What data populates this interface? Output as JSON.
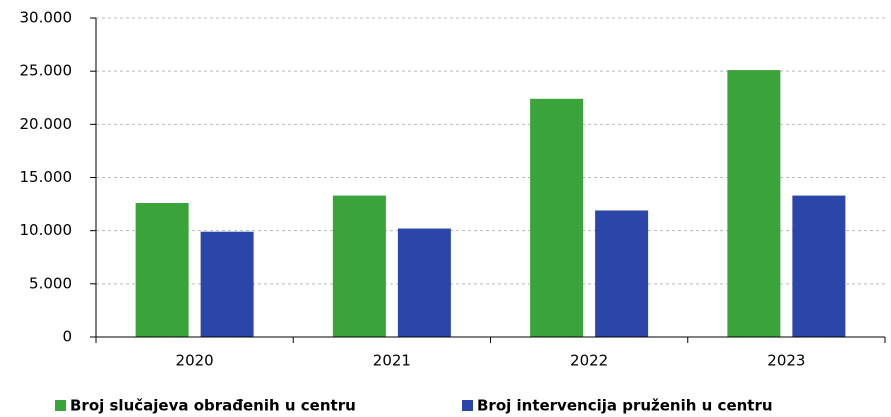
{
  "chart_data": {
    "type": "bar",
    "categories": [
      "2020",
      "2021",
      "2022",
      "2023"
    ],
    "series": [
      {
        "name": "Broj slučajeva obrađenih u centru",
        "color": "#3aa33a",
        "values": [
          12600,
          13300,
          22400,
          25100
        ]
      },
      {
        "name": "Broj intervencija pruženih u centru",
        "color": "#2b45a8",
        "values": [
          9900,
          10200,
          11900,
          13300
        ]
      }
    ],
    "ylim": [
      0,
      30000
    ],
    "yticks": [
      0,
      {
        "value": 5000,
        "label": "5.000"
      },
      {
        "value": 10000,
        "label": "10.000"
      },
      {
        "value": 15000,
        "label": "15.000"
      },
      {
        "value": 20000,
        "label": "20.000"
      },
      {
        "value": 25000,
        "label": "25.000"
      },
      {
        "value": 30000,
        "label": "30.000"
      }
    ],
    "grid": true,
    "legend": "bottom"
  }
}
